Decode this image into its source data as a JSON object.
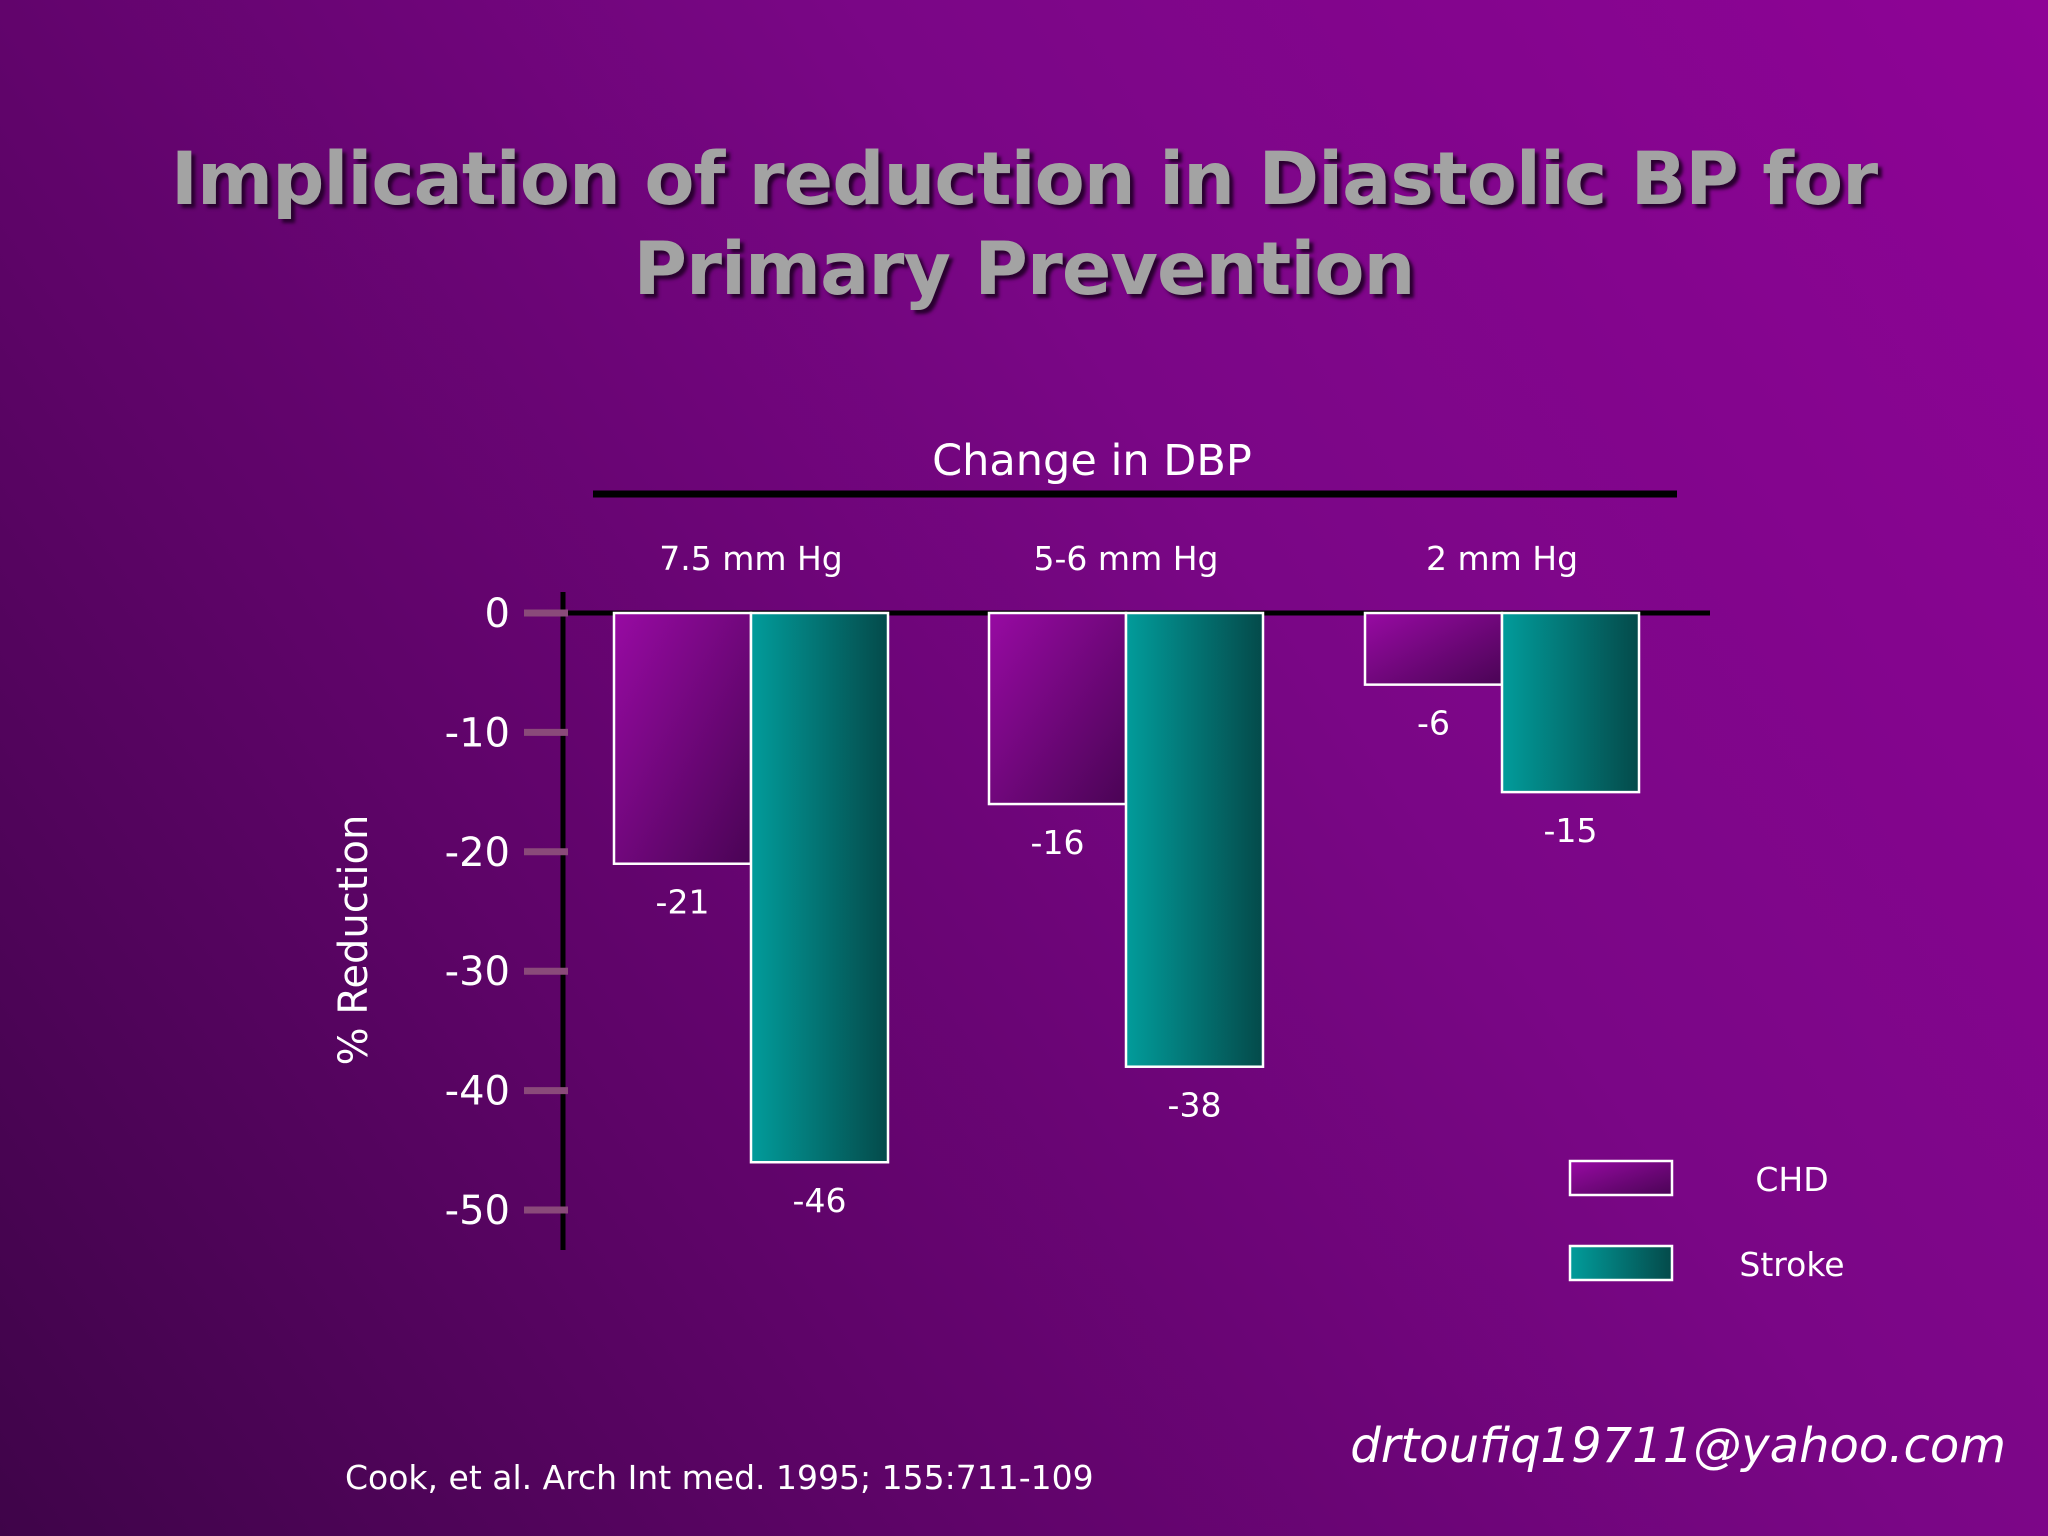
{
  "slide": {
    "title_line1": "Implication of reduction in Diastolic BP for",
    "title_line2": "Primary Prevention",
    "citation": "Cook, et al. Arch Int med. 1995; 155:711-109",
    "email": "drtoufiq19711@yahoo.com"
  },
  "chart_data": {
    "type": "bar",
    "title": "Change in DBP",
    "ylabel": "% Reduction",
    "xlabel": "",
    "categories": [
      "7.5 mm Hg",
      "5-6 mm Hg",
      "2 mm Hg"
    ],
    "series": [
      {
        "name": "CHD",
        "values": [
          -21,
          -16,
          -6
        ],
        "labels": [
          "-21",
          "-16",
          "-6"
        ],
        "colors": [
          "#980aa3",
          "#4a0455"
        ]
      },
      {
        "name": "Stroke",
        "values": [
          -46,
          -38,
          -15
        ],
        "labels": [
          "-46",
          "-38",
          "-15"
        ],
        "colors": [
          "#029c9b",
          "#044a4a"
        ]
      }
    ],
    "yticks": [
      0,
      -10,
      -20,
      -30,
      -40,
      -50
    ],
    "ytick_labels": [
      "0",
      "-10",
      "-20",
      "-30",
      "-40",
      "-50"
    ],
    "ylim": [
      -50,
      0
    ],
    "grid": false,
    "legend_position": "bottom-right"
  }
}
